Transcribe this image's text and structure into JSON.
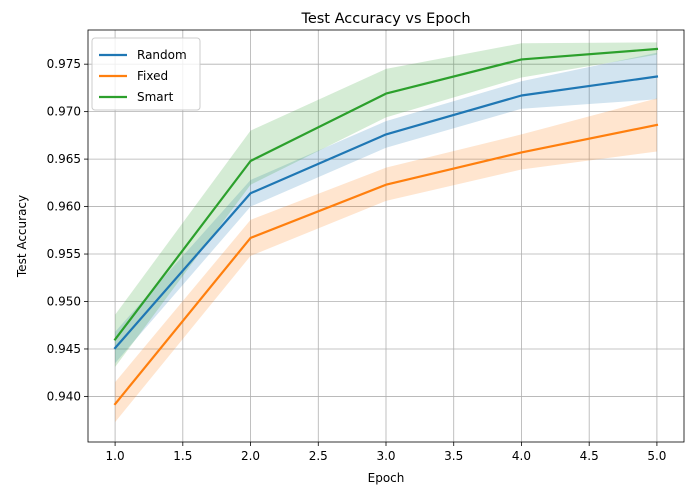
{
  "chart_data": {
    "type": "line",
    "title": "Test Accuracy vs Epoch",
    "xlabel": "Epoch",
    "ylabel": "Test Accuracy",
    "x": [
      1,
      2,
      3,
      4,
      5
    ],
    "xlim": [
      0.8,
      5.2
    ],
    "ylim": [
      0.9352,
      0.9786
    ],
    "xticks": [
      "1.0",
      "1.5",
      "2.0",
      "2.5",
      "3.0",
      "3.5",
      "4.0",
      "4.5",
      "5.0"
    ],
    "yticks": [
      "0.940",
      "0.945",
      "0.950",
      "0.955",
      "0.960",
      "0.965",
      "0.970",
      "0.975"
    ],
    "grid": true,
    "legend_position": "upper-left",
    "series": [
      {
        "name": "Random",
        "color": "#1f77b4",
        "values": [
          0.9451,
          0.9614,
          0.9676,
          0.9717,
          0.9737
        ],
        "lower": [
          0.9435,
          0.96,
          0.9662,
          0.9703,
          0.9713
        ],
        "upper": [
          0.9468,
          0.9628,
          0.969,
          0.9732,
          0.9762
        ]
      },
      {
        "name": "Fixed",
        "color": "#ff7f0e",
        "values": [
          0.9392,
          0.9567,
          0.9623,
          0.9657,
          0.9686
        ],
        "lower": [
          0.9373,
          0.9548,
          0.9606,
          0.9639,
          0.9658
        ],
        "upper": [
          0.9415,
          0.9586,
          0.9641,
          0.9676,
          0.9714
        ]
      },
      {
        "name": "Smart",
        "color": "#2ca02c",
        "values": [
          0.946,
          0.9648,
          0.9719,
          0.9755,
          0.9766
        ],
        "lower": [
          0.9431,
          0.9623,
          0.9694,
          0.9736,
          0.976
        ],
        "upper": [
          0.9486,
          0.968,
          0.9745,
          0.9772,
          0.9773
        ]
      }
    ]
  }
}
